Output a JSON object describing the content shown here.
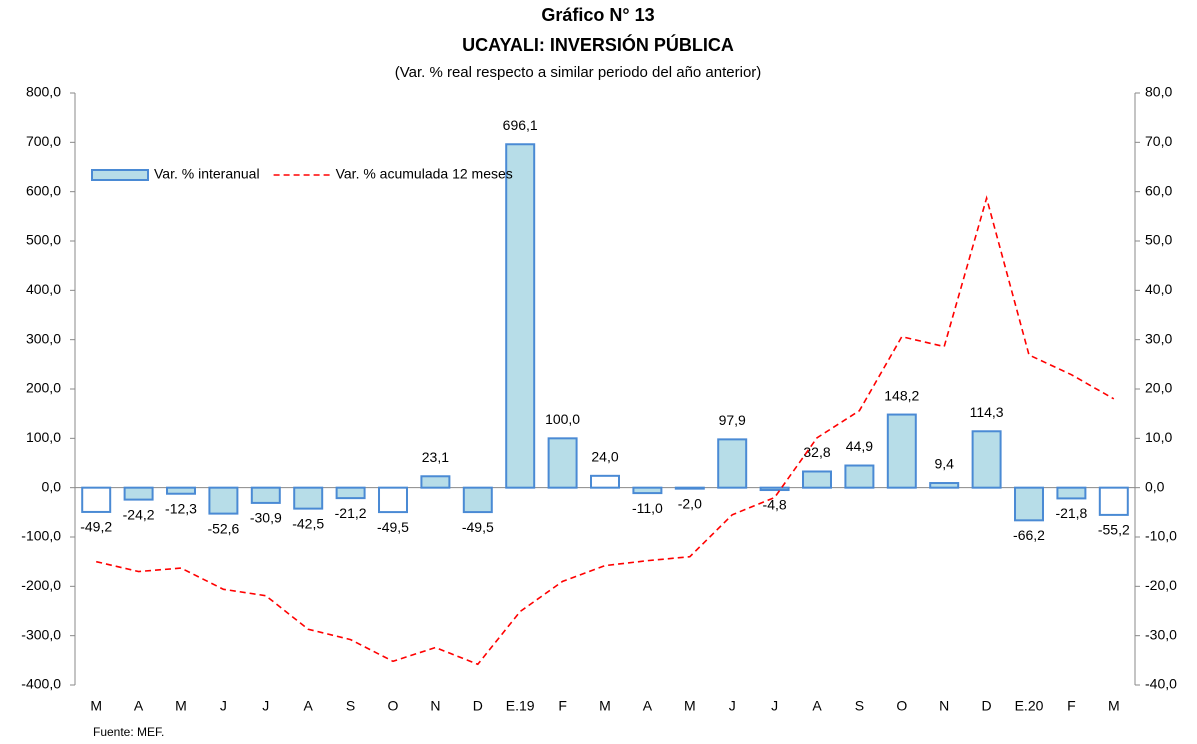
{
  "chart_data": {
    "type": "bar-line",
    "title": "Gráfico N° 13",
    "subtitle": "UCAYALI: INVERSIÓN PÚBLICA",
    "note": "(Var. % real respecto a similar periodo del año anterior)",
    "source": "Fuente: MEF.",
    "categories": [
      "M",
      "A",
      "M",
      "J",
      "J",
      "A",
      "S",
      "O",
      "N",
      "D",
      "E.19",
      "F",
      "M",
      "A",
      "M",
      "J",
      "J",
      "A",
      "S",
      "O",
      "N",
      "D",
      "E.20",
      "F",
      "M"
    ],
    "series": [
      {
        "name": "Var. % interanual",
        "type": "bar",
        "color": "#b7dde8",
        "edge_color": "#4a8ad4",
        "point_colors": [
          "#ffffff",
          "#b7dde8",
          "#b7dde8",
          "#b7dde8",
          "#b7dde8",
          "#b7dde8",
          "#b7dde8",
          "#ffffff",
          "#b7dde8",
          "#b7dde8",
          "#b7dde8",
          "#b7dde8",
          "#ffffff",
          "#b7dde8",
          "#b7dde8",
          "#b7dde8",
          "#b7dde8",
          "#b7dde8",
          "#b7dde8",
          "#b7dde8",
          "#b7dde8",
          "#b7dde8",
          "#b7dde8",
          "#b7dde8",
          "#ffffff"
        ],
        "values": [
          -49.2,
          -24.2,
          -12.3,
          -52.6,
          -30.9,
          -42.5,
          -21.2,
          -49.5,
          23.1,
          -49.5,
          696.1,
          100.0,
          24.0,
          -11.0,
          -2.0,
          97.9,
          -4.8,
          32.8,
          44.9,
          148.2,
          9.4,
          114.3,
          -66.2,
          -21.8,
          -55.2
        ],
        "value_labels": [
          "-49,2",
          "-24,2",
          "-12,3",
          "-52,6",
          "-30,9",
          "-42,5",
          "-21,2",
          "-49,5",
          "23,1",
          "-49,5",
          "696,1",
          "100,0",
          "24,0",
          "-11,0",
          "-2,0",
          "97,9",
          "-4,8",
          "32,8",
          "44,9",
          "148,2",
          "9,4",
          "114,3",
          "-66,2",
          "-21,8",
          "-55,2"
        ]
      },
      {
        "name": "Var. % acumulada 12 meses",
        "type": "line",
        "axis": "y2",
        "color": "#ff0000",
        "dashed": true,
        "values": [
          -15.0,
          -17.0,
          -16.3,
          -20.6,
          -21.9,
          -28.7,
          -30.8,
          -35.2,
          -32.4,
          -35.8,
          -25.1,
          -19.0,
          -15.8,
          -14.8,
          -14.0,
          -5.5,
          -2.0,
          10.1,
          15.6,
          30.6,
          28.6,
          58.7,
          26.9,
          22.9,
          18.0
        ]
      }
    ],
    "ylim": [
      -400,
      800
    ],
    "yticks": [
      {
        "value": -400,
        "label": "-400,0"
      },
      {
        "value": -300,
        "label": "-300,0"
      },
      {
        "value": -200,
        "label": "-200,0"
      },
      {
        "value": -100,
        "label": "-100,0"
      },
      {
        "value": 0,
        "label": "0,0"
      },
      {
        "value": 100,
        "label": "100,0"
      },
      {
        "value": 200,
        "label": "200,0"
      },
      {
        "value": 300,
        "label": "300,0"
      },
      {
        "value": 400,
        "label": "400,0"
      },
      {
        "value": 500,
        "label": "500,0"
      },
      {
        "value": 600,
        "label": "600,0"
      },
      {
        "value": 700,
        "label": "700,0"
      },
      {
        "value": 800,
        "label": "800,0"
      }
    ],
    "y2lim": [
      -40,
      80
    ],
    "y2ticks": [
      {
        "value": -40,
        "label": "-40,0"
      },
      {
        "value": -30,
        "label": "-30,0"
      },
      {
        "value": -20,
        "label": "-20,0"
      },
      {
        "value": -10,
        "label": "-10,0"
      },
      {
        "value": 0,
        "label": "0,0"
      },
      {
        "value": 10,
        "label": "10,0"
      },
      {
        "value": 20,
        "label": "20,0"
      },
      {
        "value": 30,
        "label": "30,0"
      },
      {
        "value": 40,
        "label": "40,0"
      },
      {
        "value": 50,
        "label": "50,0"
      },
      {
        "value": 60,
        "label": "60,0"
      },
      {
        "value": 70,
        "label": "70,0"
      },
      {
        "value": 80,
        "label": "80,0"
      }
    ],
    "grid": false,
    "legend": "top-left"
  }
}
